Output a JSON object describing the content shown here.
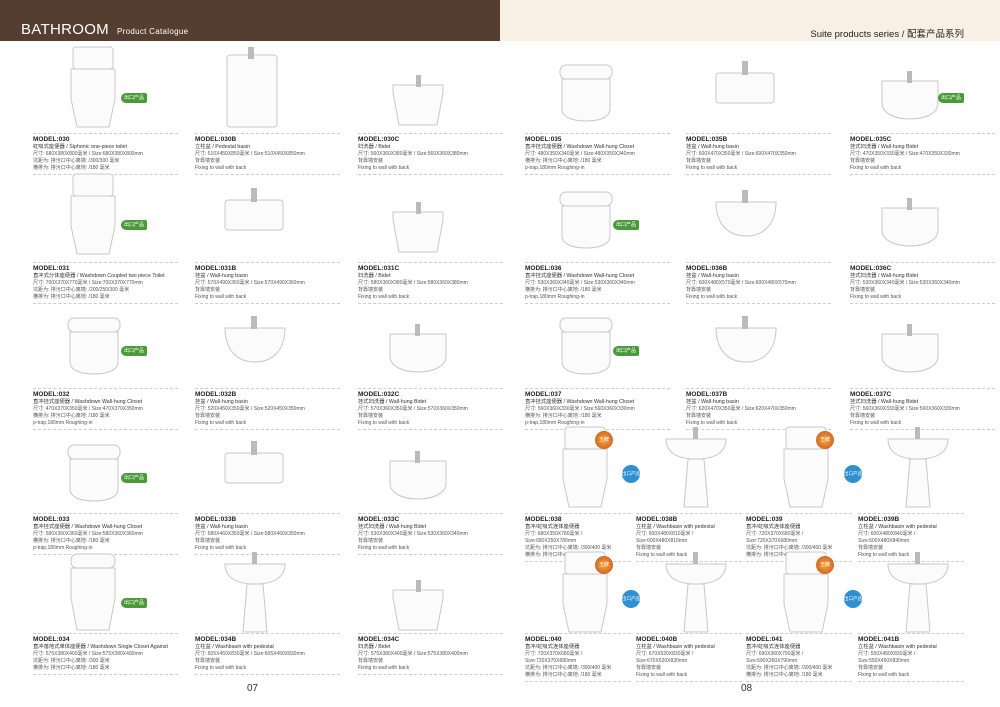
{
  "header": {
    "brand": "BATHROOM",
    "subtitle": "Product Catalogue",
    "series": "Suite products series / 配套产品系列"
  },
  "pages": {
    "left": "07",
    "right": "08"
  },
  "badge_label": "出口产品",
  "medal_label": "王牌",
  "colors": {
    "header_brown": "#553d2f",
    "header_cream": "#f8efe5",
    "badge_green": "#4a9a3a"
  },
  "products": [
    {
      "model": "MODEL:030",
      "name": "虹吸式座便器 / Siphonic one-piece toilet",
      "lines": [
        "尺寸: 680X380X800毫米 / Size:680X380X800mm",
        "坑距为: 排污口中心离墙: /300/300 毫米",
        "横排为: 排污口中心离地: /180 毫米"
      ],
      "type": "onepiece",
      "badge": true
    },
    {
      "model": "MODEL:030B",
      "name": "立柱盆 / Pedestal basin",
      "lines": [
        "尺寸: 510X450X850毫米 / Size:510X450X850mm",
        "背靠墙安装",
        "Fixing to wall with back"
      ],
      "type": "pedestal-square"
    },
    {
      "model": "MODEL:030C",
      "name": "妇洗器 / Bidet",
      "lines": [
        "尺寸: 560X360X380毫米 / Size:560X360X380mm",
        "背靠墙安装",
        "Fixing to wall with back"
      ],
      "type": "bidet"
    },
    {
      "model": "MODEL:031",
      "name": "直冲式分体座便器 / Washdown Coupled two piece Toilet",
      "lines": [
        "尺寸: 700X370X770毫米 / Size:700X370X770mm",
        "坑距为: 排污口中心离墙: /200/250/300 毫米",
        "横排为: 排污口中心离地: /180 毫米"
      ],
      "type": "onepiece",
      "badge": true
    },
    {
      "model": "MODEL:031B",
      "name": "挂盆 / Wall-hung basin",
      "lines": [
        "尺寸: 570X490X360毫米 / Size:570X490X360mm",
        "背靠墙安装",
        "Fixing to wall with back"
      ],
      "type": "wallbasin-square"
    },
    {
      "model": "MODEL:031C",
      "name": "妇洗器 / Bidet",
      "lines": [
        "尺寸: 580X360X380毫米 / Size:580X360X380mm",
        "背靠墙安装",
        "Fixing to wall with back"
      ],
      "type": "bidet"
    },
    {
      "model": "MODEL:032",
      "name": "直冲挂式座便器 / Washdown Wall-hung Closet",
      "lines": [
        "尺寸: 470X370X350毫米 / Size:470X370X350mm",
        "横排为: 排污口中心离地: /180 毫米",
        "p-trap,180mm Roughing-in"
      ],
      "type": "wallcloset",
      "badge": true
    },
    {
      "model": "MODEL:032B",
      "name": "挂盆 / Wall-hung basin",
      "lines": [
        "尺寸: 520X450X350毫米 / Size:520X450X350mm",
        "背靠墙安装",
        "Fixing to wall with back"
      ],
      "type": "wallbasin"
    },
    {
      "model": "MODEL:032C",
      "name": "挂式妇洗器 / Wall-hung Bidet",
      "lines": [
        "尺寸: 570X360X350毫米 / Size:570X360X350mm",
        "背靠墙安装",
        "Fixing to wall with back"
      ],
      "type": "wallbidet"
    },
    {
      "model": "MODEL:033",
      "name": "直冲挂式座便器 / Washdown Wall-hung Closet",
      "lines": [
        "尺寸: 580X360X360毫米 / Size:580X360X360mm",
        "横排为: 排污口中心离地: /180 毫米",
        "p-trap,180mm Roughing-in"
      ],
      "type": "wallcloset",
      "badge": true
    },
    {
      "model": "MODEL:033B",
      "name": "挂盆 / Wall-hung basin",
      "lines": [
        "尺寸: 580X460X350毫米 / Size:580X460X350mm",
        "背靠墙安装",
        "Fixing to wall with back"
      ],
      "type": "wallbasin-square"
    },
    {
      "model": "MODEL:033C",
      "name": "挂式妇洗器 / Wall-hung Bidet",
      "lines": [
        "尺寸: 530X360X340毫米 / Size:530X360X340mm",
        "背靠墙安装",
        "Fixing to wall with back"
      ],
      "type": "wallbidet"
    },
    {
      "model": "MODEL:034",
      "name": "直冲落地式单体座便器 / Washdown Single Closet Against",
      "lines": [
        "尺寸: 575X380X400毫米 / Size:575X380X400mm",
        "坑距为: 排污口中心离墙: /300 毫米",
        "横排为: 排污口中心离地: /180 毫米"
      ],
      "type": "floorcloset",
      "badge": true
    },
    {
      "model": "MODEL:034B",
      "name": "立柱盆 / Washbasin with pedestal",
      "lines": [
        "尺寸: 605X450X830毫米 / Size:605X450X830mm",
        "背靠墙安装",
        "Fixing to wall with back"
      ],
      "type": "pedestal"
    },
    {
      "model": "MODEL:034C",
      "name": "妇洗器 / Bidet",
      "lines": [
        "尺寸: 575X380X400毫米 / Size:575X380X400mm",
        "背靠墙安装",
        "Fixing to wall with back"
      ],
      "type": "bidet"
    },
    {
      "model": "MODEL:035",
      "name": "直冲挂式座便器 / Washdown Wall-hung Closet",
      "lines": [
        "尺寸: 480X350X340毫米 / Size:480X350X340mm",
        "横排为: 排污口中心离地: /180 毫米",
        "p-trap,180mm Roughing-in"
      ],
      "type": "wallcloset"
    },
    {
      "model": "MODEL:035B",
      "name": "挂盆 / Wall-hung basin",
      "lines": [
        "尺寸: 600X470X350毫米 / Size:600X470X350mm",
        "背靠墙安装",
        "Fixing to wall with back"
      ],
      "type": "wallbasin-square"
    },
    {
      "model": "MODEL:035C",
      "name": "挂式妇洗器 / Wall-hung Bidet",
      "lines": [
        "尺寸: 470X350X330毫米 / Size:470X350X330mm",
        "背靠墙安装",
        "Fixing to wall with back"
      ],
      "type": "wallbidet",
      "badge": true
    },
    {
      "model": "MODEL:036",
      "name": "直冲挂式座便器 / Washdown Wall-hung Closet",
      "lines": [
        "尺寸: 530X360X340毫米 / Size:530X360X340mm",
        "横排为: 排污口中心离地: /180 毫米",
        "p-trap,180mm Roughing-in"
      ],
      "type": "wallcloset",
      "badge": true
    },
    {
      "model": "MODEL:036B",
      "name": "挂盆 / Wall-hung basin",
      "lines": [
        "尺寸: 600X480X570毫米 / Size:600X480X570mm",
        "背靠墙安装",
        "Fixing to wall with back"
      ],
      "type": "wallbasin"
    },
    {
      "model": "MODEL:036C",
      "name": "挂式妇洗器 / Wall-hung Bidet",
      "lines": [
        "尺寸: 530X360X340毫米 / Size:530X360X340mm",
        "背靠墙安装",
        "Fixing to wall with back"
      ],
      "type": "wallbidet"
    },
    {
      "model": "MODEL:037",
      "name": "直冲挂式座便器 / Washdown Wall-hung Closet",
      "lines": [
        "尺寸: 560X360X330毫米 / Size:560X360X330mm",
        "横排为: 排污口中心离地: /180 毫米",
        "p-trap,180mm Roughing-in"
      ],
      "type": "wallcloset",
      "badge": true
    },
    {
      "model": "MODEL:037B",
      "name": "挂盆 / Wall-hung basin",
      "lines": [
        "尺寸: 620X470X350毫米 / Size:620X470X350mm",
        "背靠墙安装",
        "Fixing to wall with back"
      ],
      "type": "wallbasin"
    },
    {
      "model": "MODEL:037C",
      "name": "挂式妇洗器 / Wall-hung Bidet",
      "lines": [
        "尺寸: 560X360X330毫米 / Size:560X360X330mm",
        "背靠墙安装",
        "Fixing to wall with back"
      ],
      "type": "wallbidet"
    },
    {
      "model": "MODEL:038",
      "name": "直冲/虹吸式连体座便器",
      "lines": [
        "尺寸: 680X350X780毫米 / Size:680X350X780mm",
        "坑距为: 排污口中心离墙: /300/400 毫米",
        "横排为: 排污口中心离地: /180 毫米"
      ],
      "type": "onepiece",
      "medal": true
    },
    {
      "model": "MODEL:038B",
      "name": "立柱盆 / Washbasin with pedestal",
      "lines": [
        "尺寸: 600X480X810毫米 / Size:600X480X810mm",
        "背靠墙安装",
        "Fixing to wall with back"
      ],
      "type": "pedestal",
      "blue": true
    },
    {
      "model": "MODEL:039",
      "name": "直冲/虹吸式连体座便器",
      "lines": [
        "尺寸: 720X370X680毫米 / Size:720X370X680mm",
        "坑距为: 排污口中心离墙: /300/400 毫米",
        "横排为: 排污口中心离地: /180 毫米"
      ],
      "type": "onepiece",
      "medal": true
    },
    {
      "model": "MODEL:039B",
      "name": "立柱盆 / Washbasin with pedestal",
      "lines": [
        "尺寸: 600X480X840毫米 / Size:600X480X840mm",
        "背靠墙安装",
        "Fixing to wall with back"
      ],
      "type": "pedestal",
      "blue": true
    },
    {
      "model": "MODEL:040",
      "name": "直冲/虹吸式连体座便器",
      "lines": [
        "尺寸: 720X370X680毫米 / Size:720X370X680mm",
        "坑距为: 排污口中心离墙: /300/400 毫米",
        "横排为: 排污口中心离地: /180 毫米"
      ],
      "type": "onepiece",
      "medal": true
    },
    {
      "model": "MODEL:040B",
      "name": "立柱盆 / Washbasin with pedestal",
      "lines": [
        "尺寸: 670X520X830毫米 / Size:670X520X830mm",
        "背靠墙安装",
        "Fixing to wall with back"
      ],
      "type": "pedestal",
      "blue": true
    },
    {
      "model": "MODEL:041",
      "name": "直冲/虹吸式连体座便器",
      "lines": [
        "尺寸: 690X360X790毫米 / Size:690X360X790mm",
        "坑距为: 排污口中心离墙: /300/400 毫米",
        "横排为: 排污口中心离地: /180 毫米"
      ],
      "type": "onepiece",
      "medal": true
    },
    {
      "model": "MODEL:041B",
      "name": "立柱盆 / Washbasin with pedestal",
      "lines": [
        "尺寸: 550X450X830毫米 / Size:550X450X830mm",
        "背靠墙安装",
        "Fixing to wall with back"
      ],
      "type": "pedestal",
      "blue": true
    }
  ]
}
